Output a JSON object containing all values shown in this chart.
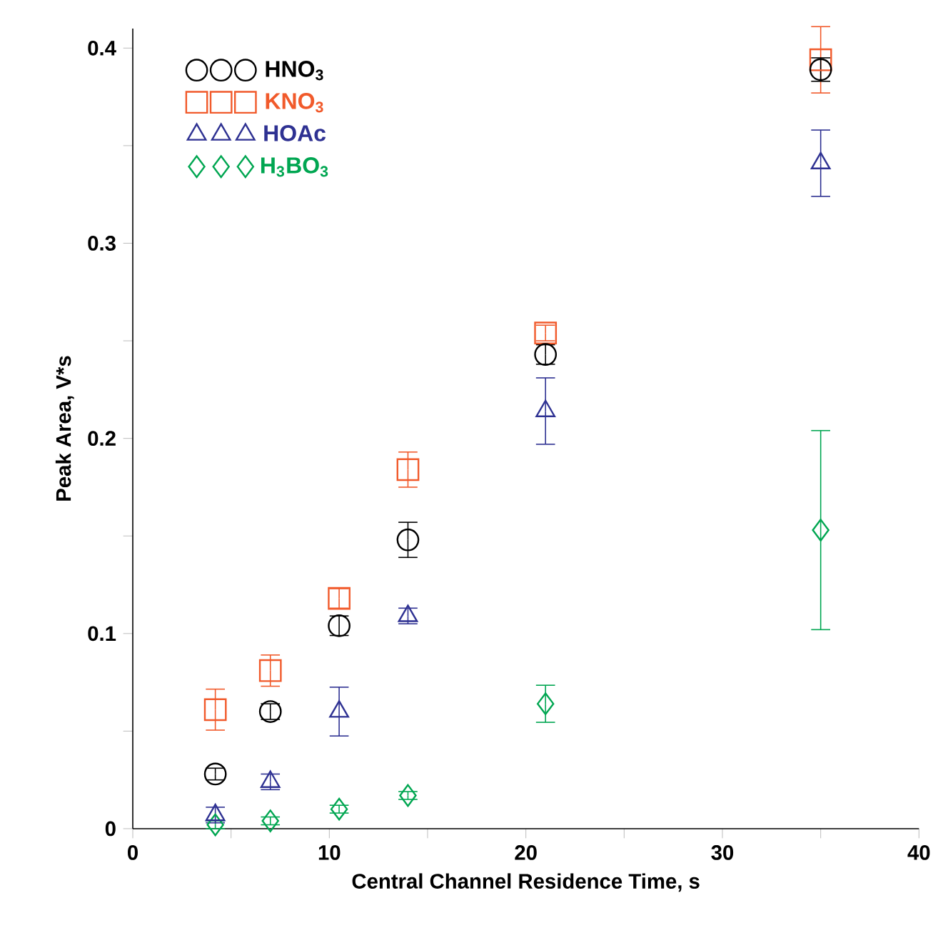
{
  "chart_data": {
    "type": "scatter",
    "xlabel": "Central Channel Residence Time, s",
    "ylabel": "Peak Area, V*s",
    "x": [
      4.2,
      7,
      10.5,
      14,
      21,
      35
    ],
    "series": [
      {
        "name": "HNO$_{3}$",
        "color": "#000000",
        "marker": "circle",
        "values": [
          0.028,
          0.06,
          0.104,
          0.148,
          0.243,
          0.389
        ],
        "errors": [
          0.003,
          0.004,
          0.005,
          0.009,
          0.005,
          0.006
        ]
      },
      {
        "name": "KNO$_{3}$",
        "color": "#f15a2b",
        "marker": "square",
        "values": [
          0.061,
          0.081,
          0.118,
          0.184,
          0.254,
          0.394
        ],
        "errors": [
          0.0105,
          0.008,
          0.005,
          0.009,
          0.004,
          0.017
        ]
      },
      {
        "name": "HOAc",
        "color": "#2e3192",
        "marker": "triangle",
        "values": [
          0.007,
          0.024,
          0.06,
          0.109,
          0.214,
          0.341
        ],
        "errors": [
          0.004,
          0.004,
          0.0125,
          0.004,
          0.017,
          0.017
        ]
      },
      {
        "name": "H$_{3}$BO$_{3}$",
        "color": "#00a651",
        "marker": "diamond",
        "values": [
          0.002,
          0.004,
          0.01,
          0.017,
          0.064,
          0.153
        ],
        "errors": [
          0.002,
          0.002,
          0.002,
          0.002,
          0.0095,
          0.051
        ]
      }
    ],
    "xlim": [
      0,
      40
    ],
    "ylim": [
      0,
      0.41
    ],
    "xticks": [
      0,
      {
        "value": 5,
        "label": null
      },
      10,
      {
        "value": 15,
        "label": null
      },
      20,
      {
        "value": 25,
        "label": null
      },
      30,
      {
        "value": 35,
        "label": null
      },
      40
    ],
    "yticks": [
      0,
      {
        "value": 0.05,
        "label": null
      },
      0.1,
      {
        "value": 0.15,
        "label": null
      },
      0.2,
      {
        "value": 0.25,
        "label": null
      },
      0.3,
      {
        "value": 0.35,
        "label": null
      },
      0.4
    ],
    "grid": false,
    "legend": "top left"
  }
}
